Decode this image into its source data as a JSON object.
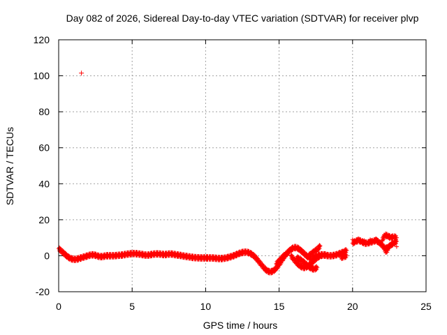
{
  "chart_data": {
    "type": "scatter",
    "title": "Day 082 of 2026, Sidereal Day-to-day VTEC variation (SDTVAR) for receiver plvp",
    "xlabel": "GPS time / hours",
    "ylabel": "SDTVAR / TECUs",
    "xlim": [
      0,
      25
    ],
    "ylim": [
      -20,
      120
    ],
    "xticks": [
      0,
      5,
      10,
      15,
      20,
      25
    ],
    "yticks": [
      -20,
      0,
      20,
      40,
      60,
      80,
      100,
      120
    ],
    "xtick_labels": [
      "0",
      "5",
      "10",
      "15",
      "20",
      "25"
    ],
    "ytick_labels": [
      "-20",
      "0",
      "20",
      "40",
      "60",
      "80",
      "100",
      "120"
    ],
    "grid": true,
    "legend": "none",
    "marker": "plus",
    "color": "#ff0000",
    "series": [
      {
        "name": "main trace",
        "points": [
          [
            0.0,
            4
          ],
          [
            0.2,
            2.5
          ],
          [
            0.4,
            1
          ],
          [
            0.6,
            -0.5
          ],
          [
            0.8,
            -1.5
          ],
          [
            1.0,
            -2
          ],
          [
            1.2,
            -2
          ],
          [
            1.4,
            -1.5
          ],
          [
            1.6,
            -1
          ],
          [
            1.8,
            -0.5
          ],
          [
            2.0,
            0
          ],
          [
            2.2,
            0.5
          ],
          [
            2.4,
            0.5
          ],
          [
            2.6,
            0
          ],
          [
            2.8,
            -0.5
          ],
          [
            3.0,
            -0.5
          ],
          [
            3.2,
            0
          ],
          [
            3.4,
            0
          ],
          [
            3.6,
            0
          ],
          [
            3.8,
            0
          ],
          [
            4.0,
            0.2
          ],
          [
            4.2,
            0.3
          ],
          [
            4.4,
            0.5
          ],
          [
            4.6,
            0.8
          ],
          [
            4.8,
            1
          ],
          [
            5.0,
            1.2
          ],
          [
            5.2,
            1.2
          ],
          [
            5.4,
            1
          ],
          [
            5.6,
            0.8
          ],
          [
            5.8,
            0.5
          ],
          [
            6.0,
            0.3
          ],
          [
            6.2,
            0.5
          ],
          [
            6.4,
            0.8
          ],
          [
            6.6,
            1
          ],
          [
            6.8,
            1
          ],
          [
            7.0,
            0.8
          ],
          [
            7.2,
            0.6
          ],
          [
            7.4,
            0.8
          ],
          [
            7.6,
            1
          ],
          [
            7.8,
            0.8
          ],
          [
            8.0,
            0.5
          ],
          [
            8.2,
            0.3
          ],
          [
            8.4,
            0
          ],
          [
            8.6,
            -0.3
          ],
          [
            8.8,
            -0.5
          ],
          [
            9.0,
            -0.8
          ],
          [
            9.2,
            -1
          ],
          [
            9.4,
            -1.1
          ],
          [
            9.6,
            -1.2
          ],
          [
            9.8,
            -1.2
          ],
          [
            10.0,
            -1.2
          ],
          [
            10.2,
            -1.2
          ],
          [
            10.4,
            -1.2
          ],
          [
            10.6,
            -1.3
          ],
          [
            10.8,
            -1.5
          ],
          [
            11.0,
            -1.6
          ],
          [
            11.2,
            -1.5
          ],
          [
            11.4,
            -1.2
          ],
          [
            11.6,
            -0.8
          ],
          [
            11.8,
            -0.3
          ],
          [
            12.0,
            0.3
          ],
          [
            12.2,
            1
          ],
          [
            12.4,
            1.6
          ],
          [
            12.6,
            2
          ],
          [
            12.8,
            2
          ],
          [
            13.0,
            1.5
          ],
          [
            13.2,
            0.5
          ],
          [
            13.4,
            -1
          ],
          [
            13.6,
            -3
          ],
          [
            13.8,
            -5
          ],
          [
            14.0,
            -7
          ],
          [
            14.2,
            -8.5
          ],
          [
            14.4,
            -9
          ],
          [
            14.6,
            -8.5
          ],
          [
            14.8,
            -7
          ],
          [
            15.0,
            -5
          ],
          [
            15.2,
            -2.5
          ],
          [
            15.4,
            0
          ],
          [
            15.6,
            2
          ],
          [
            15.8,
            3.5
          ],
          [
            16.0,
            4.5
          ],
          [
            16.2,
            4.5
          ],
          [
            16.4,
            3.5
          ],
          [
            16.6,
            2
          ],
          [
            16.8,
            0.5
          ],
          [
            17.0,
            -1
          ],
          [
            17.2,
            -1.5
          ],
          [
            17.4,
            -1
          ],
          [
            17.6,
            0
          ],
          [
            17.8,
            0.5
          ],
          [
            18.0,
            0.5
          ],
          [
            18.2,
            0.2
          ],
          [
            18.4,
            0
          ],
          [
            18.6,
            0
          ],
          [
            18.8,
            0.3
          ],
          [
            19.0,
            0.8
          ],
          [
            19.2,
            1.5
          ],
          [
            19.4,
            2
          ],
          [
            19.6,
            3
          ]
        ]
      },
      {
        "name": "secondary trace",
        "points": [
          [
            15.8,
            0
          ],
          [
            16.0,
            -2
          ],
          [
            16.2,
            -4
          ],
          [
            16.4,
            -5.5
          ],
          [
            16.6,
            -6.5
          ],
          [
            16.8,
            -6.5
          ],
          [
            17.0,
            -5.5
          ],
          [
            17.2,
            -4
          ],
          [
            17.4,
            -2.5
          ],
          [
            17.6,
            -1
          ],
          [
            17.8,
            0
          ],
          [
            18.0,
            0.5
          ],
          [
            18.2,
            0.5
          ],
          [
            14.8,
            -4.5
          ],
          [
            15.0,
            -3
          ],
          [
            15.2,
            -1
          ],
          [
            15.4,
            0.5
          ],
          [
            15.6,
            1.5
          ],
          [
            16.2,
            -1
          ],
          [
            16.4,
            -2
          ],
          [
            16.6,
            -3
          ],
          [
            16.8,
            -4.5
          ],
          [
            17.0,
            -6
          ],
          [
            17.2,
            -7
          ],
          [
            17.4,
            -7.5
          ],
          [
            17.6,
            -6.5
          ],
          [
            17.0,
            0
          ],
          [
            17.2,
            1
          ],
          [
            17.4,
            2.5
          ],
          [
            17.6,
            3.5
          ],
          [
            17.8,
            5.5
          ],
          [
            19.6,
            0
          ],
          [
            19.4,
            -0.5
          ],
          [
            19.2,
            -1
          ]
        ]
      },
      {
        "name": "late segment",
        "points": [
          [
            20.0,
            7
          ],
          [
            20.2,
            8
          ],
          [
            20.4,
            8.5
          ],
          [
            20.6,
            8
          ],
          [
            20.8,
            7
          ],
          [
            21.0,
            7
          ],
          [
            21.2,
            7.5
          ],
          [
            21.4,
            8
          ],
          [
            21.6,
            8.5
          ],
          [
            21.8,
            7.5
          ],
          [
            22.0,
            6
          ],
          [
            22.2,
            4
          ],
          [
            22.4,
            4.5
          ],
          [
            22.6,
            6
          ],
          [
            22.8,
            7
          ],
          [
            23.0,
            8
          ],
          [
            20.0,
            9
          ],
          [
            20.4,
            9.5
          ],
          [
            20.8,
            8.5
          ],
          [
            21.2,
            9
          ],
          [
            21.6,
            9.5
          ],
          [
            22.0,
            8.5
          ],
          [
            22.2,
            11.5
          ],
          [
            22.4,
            11
          ],
          [
            22.6,
            10
          ],
          [
            22.8,
            10.5
          ],
          [
            23.0,
            10
          ],
          [
            22.2,
            2.5
          ],
          [
            22.4,
            3
          ],
          [
            23.0,
            5
          ]
        ]
      },
      {
        "name": "outlier",
        "points": [
          [
            1.55,
            101.5
          ]
        ]
      }
    ]
  }
}
